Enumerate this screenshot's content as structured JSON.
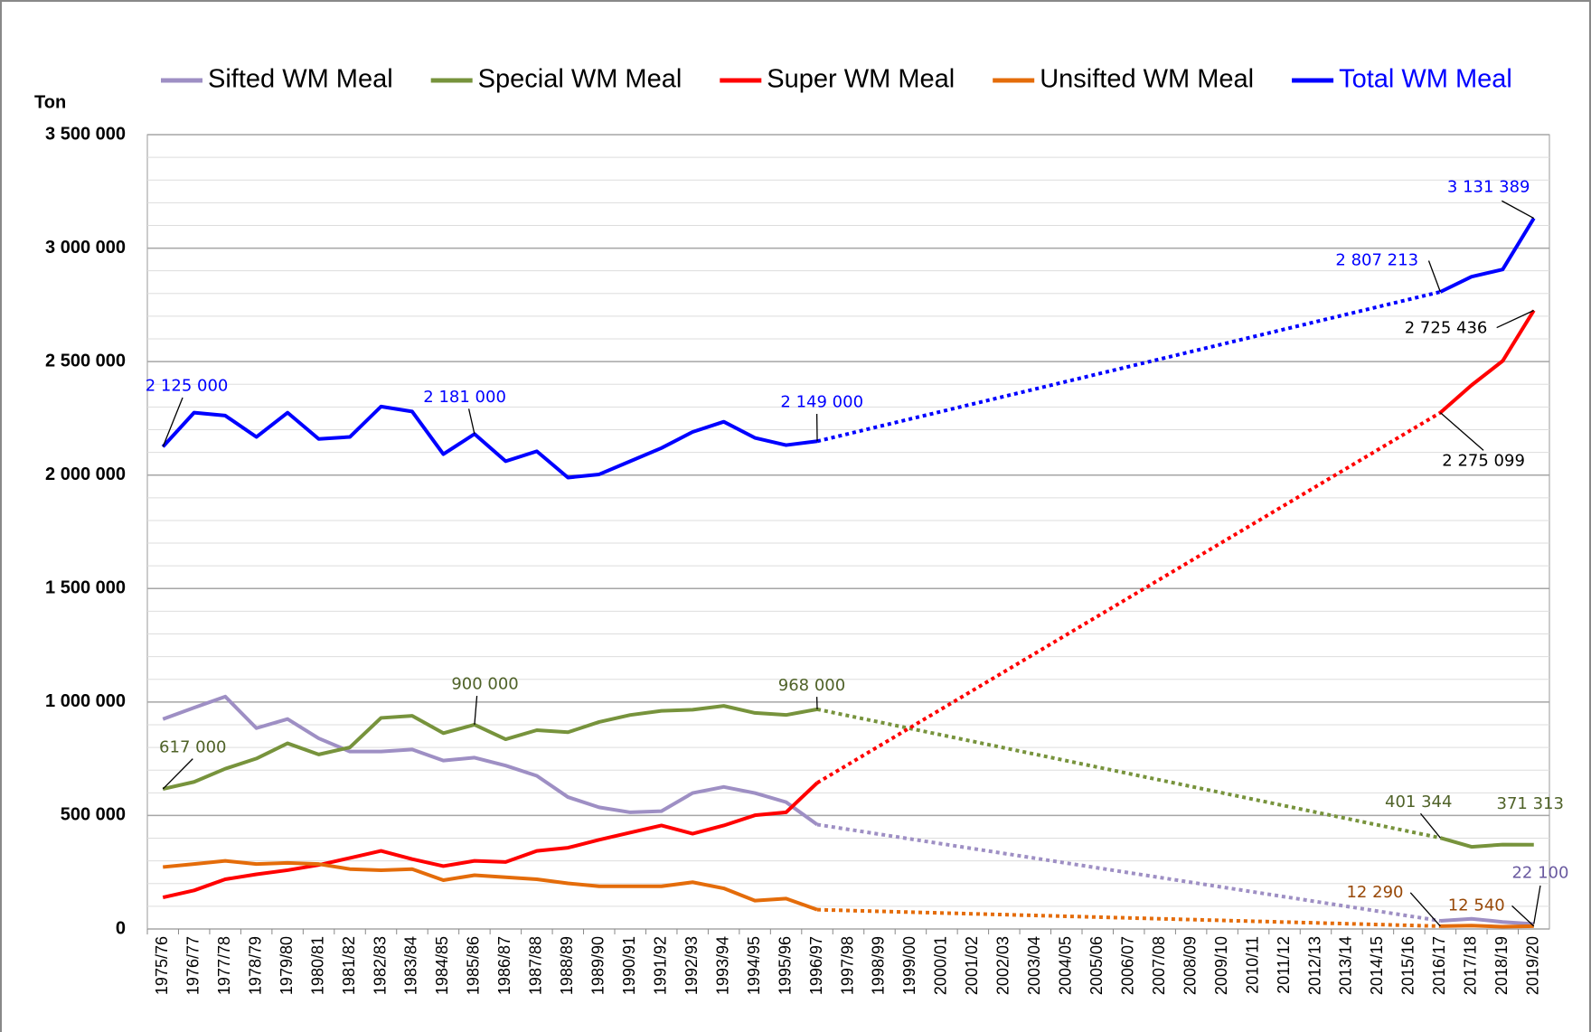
{
  "chart_data": {
    "type": "line",
    "y_label": "Ton",
    "categories": [
      "1975/76",
      "1976/77",
      "1977/78",
      "1978/79",
      "1979/80",
      "1980/81",
      "1981/82",
      "1982/83",
      "1983/84",
      "1984/85",
      "1985/86",
      "1986/87",
      "1987/88",
      "1988/89",
      "1989/90",
      "1990/91",
      "1991/92",
      "1992/93",
      "1993/94",
      "1994/95",
      "1995/96",
      "1996/97",
      "1997/98",
      "1998/99",
      "1999/00",
      "2000/01",
      "2001/02",
      "2002/03",
      "2003/04",
      "2004/05",
      "2005/06",
      "2006/07",
      "2007/08",
      "2008/09",
      "2009/10",
      "2010/11",
      "2011/12",
      "2012/13",
      "2013/14",
      "2014/15",
      "2015/16",
      "2016/17",
      "2017/18",
      "2018/19",
      "2019/20"
    ],
    "ylim": [
      0,
      3500000
    ],
    "yticks": [
      0,
      {
        "value": 500000,
        "label": "500  000"
      },
      {
        "value": 1000000,
        "label": "1  000  000"
      },
      {
        "value": 1500000,
        "label": "1  500  000"
      },
      {
        "value": 2000000,
        "label": "2  000  000"
      },
      {
        "value": 2500000,
        "label": "2  500  000"
      },
      {
        "value": 3000000,
        "label": "3  000  000"
      },
      {
        "value": 3500000,
        "label": "3  500  000"
      }
    ],
    "minor_ystep": 100000,
    "grid": true,
    "gap_style": "dotted",
    "legend": "top",
    "series": [
      {
        "name": "Sifted WM Meal",
        "color": "#9e8fc4",
        "label_color": "#6a5aa0",
        "legend_text_color": "#000000",
        "values": [
          925000,
          975000,
          1024000,
          885000,
          925000,
          840000,
          782000,
          782000,
          791000,
          742000,
          755000,
          720000,
          675000,
          581000,
          536000,
          514000,
          519000,
          599000,
          626000,
          599000,
          559000,
          460000,
          null,
          null,
          null,
          null,
          null,
          null,
          null,
          null,
          null,
          null,
          null,
          null,
          null,
          null,
          null,
          null,
          null,
          null,
          null,
          36000,
          45000,
          31000,
          22100
        ],
        "value_labels": [
          null,
          null,
          null,
          null,
          null,
          null,
          null,
          null,
          null,
          null,
          null,
          null,
          null,
          null,
          null,
          null,
          null,
          null,
          null,
          null,
          null,
          null,
          null,
          null,
          null,
          null,
          null,
          null,
          null,
          null,
          null,
          null,
          null,
          null,
          null,
          null,
          null,
          null,
          null,
          null,
          null,
          null,
          null,
          null,
          "22 100"
        ]
      },
      {
        "name": "Special WM Meal",
        "color": "#77933c",
        "label_color": "#4f6228",
        "legend_text_color": "#000000",
        "values": [
          617000,
          648000,
          706000,
          751000,
          818000,
          769000,
          800000,
          930000,
          939000,
          863000,
          900000,
          836000,
          876000,
          867000,
          912000,
          943000,
          961000,
          966000,
          983000,
          952000,
          943000,
          968000,
          null,
          null,
          null,
          null,
          null,
          null,
          null,
          null,
          null,
          null,
          null,
          null,
          null,
          null,
          null,
          null,
          null,
          null,
          null,
          401344,
          362000,
          372000,
          371313
        ],
        "value_labels": [
          "617 000",
          null,
          null,
          null,
          null,
          null,
          null,
          null,
          null,
          null,
          "900 000",
          null,
          null,
          null,
          null,
          null,
          null,
          null,
          null,
          null,
          null,
          "968 000",
          null,
          null,
          null,
          null,
          null,
          null,
          null,
          null,
          null,
          null,
          null,
          null,
          null,
          null,
          null,
          null,
          null,
          null,
          null,
          "401 344",
          null,
          null,
          "371 313"
        ]
      },
      {
        "name": "Super WM Meal",
        "color": "#ff0000",
        "label_color": "#000000",
        "legend_text_color": "#000000",
        "values": [
          139000,
          170000,
          219000,
          241000,
          259000,
          282000,
          313000,
          344000,
          308000,
          277000,
          300000,
          295000,
          344000,
          358000,
          393000,
          425000,
          456000,
          420000,
          456000,
          501000,
          514000,
          644000,
          null,
          null,
          null,
          null,
          null,
          null,
          null,
          null,
          null,
          null,
          null,
          null,
          null,
          null,
          null,
          null,
          null,
          null,
          null,
          2275099,
          2396000,
          2503000,
          2725436
        ],
        "value_labels": [
          null,
          null,
          null,
          null,
          null,
          null,
          null,
          null,
          null,
          null,
          null,
          null,
          null,
          null,
          null,
          null,
          null,
          null,
          null,
          null,
          null,
          null,
          null,
          null,
          null,
          null,
          null,
          null,
          null,
          null,
          null,
          null,
          null,
          null,
          null,
          null,
          null,
          null,
          null,
          null,
          null,
          "2 275 099",
          null,
          null,
          "2 725 436"
        ]
      },
      {
        "name": "Unsifted WM Meal",
        "color": "#e46c0a",
        "label_color": "#984807",
        "legend_text_color": "#000000",
        "values": [
          273000,
          286000,
          300000,
          286000,
          291000,
          286000,
          264000,
          259000,
          264000,
          215000,
          237000,
          228000,
          219000,
          201000,
          188000,
          188000,
          188000,
          206000,
          179000,
          125000,
          134000,
          85000,
          null,
          null,
          null,
          null,
          null,
          null,
          null,
          null,
          null,
          null,
          null,
          null,
          null,
          null,
          null,
          null,
          null,
          null,
          null,
          12290,
          15000,
          10000,
          12540
        ],
        "value_labels": [
          null,
          null,
          null,
          null,
          null,
          null,
          null,
          null,
          null,
          null,
          null,
          null,
          null,
          null,
          null,
          null,
          null,
          null,
          null,
          null,
          null,
          null,
          null,
          null,
          null,
          null,
          null,
          null,
          null,
          null,
          null,
          null,
          null,
          null,
          null,
          null,
          null,
          null,
          null,
          null,
          null,
          "12 290",
          null,
          null,
          "12 540"
        ]
      },
      {
        "name": "Total WM Meal",
        "color": "#0000ff",
        "label_color": "#0000ff",
        "legend_text_color": "#0000ff",
        "values": [
          2125000,
          2275000,
          2262000,
          2168000,
          2275000,
          2159000,
          2168000,
          2302000,
          2280000,
          2092000,
          2181000,
          2061000,
          2105000,
          1989000,
          2003000,
          2061000,
          2119000,
          2190000,
          2235000,
          2164000,
          2132000,
          2149000,
          null,
          null,
          null,
          null,
          null,
          null,
          null,
          null,
          null,
          null,
          null,
          null,
          null,
          null,
          null,
          null,
          null,
          null,
          null,
          2807213,
          2874000,
          2906000,
          3131389
        ],
        "value_labels": [
          "2 125 000",
          null,
          null,
          null,
          null,
          null,
          null,
          null,
          null,
          null,
          "2 181 000",
          null,
          null,
          null,
          null,
          null,
          null,
          null,
          null,
          null,
          null,
          "2 149 000",
          null,
          null,
          null,
          null,
          null,
          null,
          null,
          null,
          null,
          null,
          null,
          null,
          null,
          null,
          null,
          null,
          null,
          null,
          null,
          "2 807 213",
          null,
          null,
          "3 131 389"
        ]
      }
    ]
  }
}
